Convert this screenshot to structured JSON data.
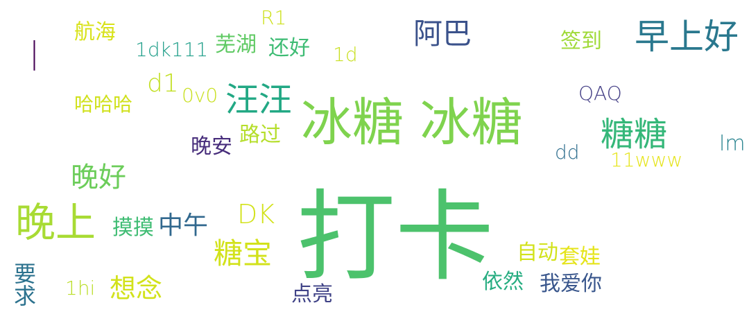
{
  "palette": {
    "purple": "#440154",
    "indigo": "#3b528b",
    "blue": "#31688e",
    "teal": "#21918c",
    "green": "#35b779",
    "lime": "#90d743",
    "yellow": "#d2e21b",
    "gold": "#e5e419"
  },
  "words": [
    {
      "text": "打卡",
      "weight": 100
    },
    {
      "text": "冰糖 冰糖",
      "weight": 72
    },
    {
      "text": "晚上",
      "weight": 60
    },
    {
      "text": "早上好",
      "weight": 50
    },
    {
      "text": "汪汪",
      "weight": 48
    },
    {
      "text": "糖糖",
      "weight": 46
    },
    {
      "text": "阿巴",
      "weight": 42
    },
    {
      "text": "糖宝",
      "weight": 40
    },
    {
      "text": "晚好",
      "weight": 40
    },
    {
      "text": "想念",
      "weight": 38
    },
    {
      "text": "中午",
      "weight": 36
    },
    {
      "text": "DK",
      "weight": 36
    },
    {
      "text": "d1",
      "weight": 34
    },
    {
      "text": "摸摸",
      "weight": 32
    },
    {
      "text": "要求",
      "weight": 32
    },
    {
      "text": "自动",
      "weight": 30
    },
    {
      "text": "套娃",
      "weight": 30
    },
    {
      "text": "依然",
      "weight": 30
    },
    {
      "text": "我爱你",
      "weight": 30
    },
    {
      "text": "点亮",
      "weight": 30
    },
    {
      "text": "芜湖",
      "weight": 30
    },
    {
      "text": "还好",
      "weight": 30
    },
    {
      "text": "签到",
      "weight": 30
    },
    {
      "text": "航海",
      "weight": 30
    },
    {
      "text": "晚安",
      "weight": 30
    },
    {
      "text": "路过",
      "weight": 30
    },
    {
      "text": "哈哈哈",
      "weight": 28
    },
    {
      "text": "1dk111",
      "weight": 28
    },
    {
      "text": "lm",
      "weight": 28
    },
    {
      "text": "dd",
      "weight": 28
    },
    {
      "text": "11www",
      "weight": 28
    },
    {
      "text": "QAQ",
      "weight": 28
    },
    {
      "text": "1hi",
      "weight": 28
    },
    {
      "text": "0v0",
      "weight": 28
    },
    {
      "text": "1d",
      "weight": 28
    },
    {
      "text": "R1",
      "weight": 28
    },
    {
      "text": "|",
      "weight": 40
    }
  ]
}
